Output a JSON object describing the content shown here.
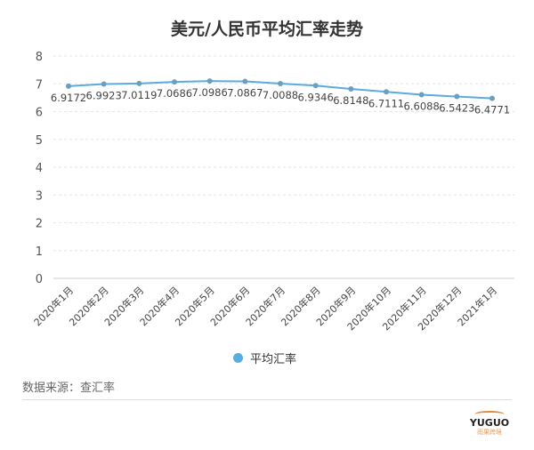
{
  "chart_data": {
    "type": "line",
    "title": "美元/人民币平均汇率走势",
    "categories": [
      "2020年1月",
      "2020年2月",
      "2020年3月",
      "2020年4月",
      "2020年5月",
      "2020年6月",
      "2020年7月",
      "2020年8月",
      "2020年9月",
      "2020年10月",
      "2020年11月",
      "2020年12月",
      "2021年1月"
    ],
    "series": [
      {
        "name": "平均汇率",
        "values": [
          6.9172,
          6.9923,
          7.0119,
          7.0686,
          7.0986,
          7.0867,
          7.0088,
          6.9346,
          6.8148,
          6.7111,
          6.6088,
          6.5423,
          6.4771
        ]
      }
    ],
    "ylim": [
      0,
      8
    ],
    "yticks": [
      0,
      1,
      2,
      3,
      4,
      5,
      6,
      7,
      8
    ],
    "grid": true,
    "legend": "bottom",
    "color": "#5aabdf"
  },
  "source": "数据来源：查汇率",
  "logo": {
    "text": "YUGUO",
    "sub": "雨果跨境"
  }
}
